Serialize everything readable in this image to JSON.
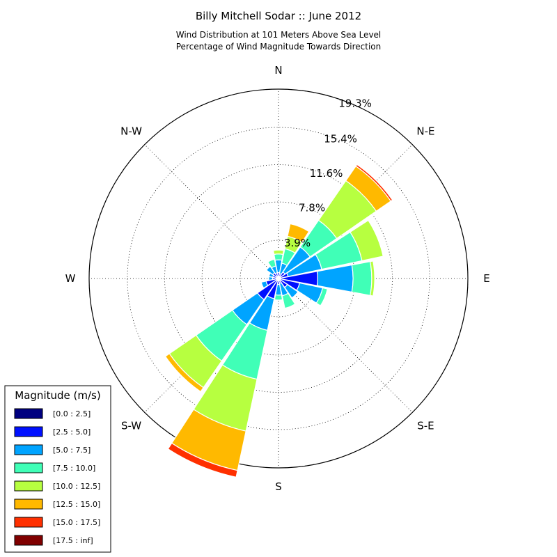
{
  "chart_data": {
    "type": "windrose",
    "title": "Billy Mitchell Sodar :: June 2012",
    "subtitle_line1": "Wind Distribution at 101 Meters Above Sea Level",
    "subtitle_line2": "Percentage of Wind Magnitude Towards Direction",
    "direction_labels": [
      "N",
      "N-E",
      "E",
      "S-E",
      "S",
      "S-W",
      "W",
      "N-W"
    ],
    "ring_labels": [
      "3.9%",
      "7.8%",
      "11.6%",
      "15.4%",
      "19.3%"
    ],
    "rings": [
      3.9,
      7.8,
      11.6,
      15.4,
      19.3
    ],
    "rmax": 19.3,
    "grid": true,
    "legend": {
      "title": "Magnitude (m/s)",
      "placement": "bottom-left",
      "entries": [
        "[0.0 : 2.5]",
        "[2.5 : 5.0]",
        "[5.0 : 7.5]",
        "[7.5 : 10.0]",
        "[10.0 : 12.5]",
        "[12.5 : 15.0]",
        "[15.0 : 17.5]",
        "[17.5 : inf]"
      ]
    },
    "bin_colors": [
      "#000080",
      "#0010ff",
      "#00a4ff",
      "#40ffb7",
      "#b7ff40",
      "#ffb900",
      "#ff3000",
      "#800000"
    ],
    "sector_width_deg": 22.5,
    "sectors": [
      {
        "direction_deg": 0,
        "cumulative": [
          0.2,
          0.6,
          1.9,
          2.5,
          2.9
        ]
      },
      {
        "direction_deg": 22.5,
        "cumulative": [
          0.2,
          0.5,
          1.6,
          3.1,
          4.4,
          5.7
        ]
      },
      {
        "direction_deg": 45,
        "cumulative": [
          0.2,
          0.8,
          3.9,
          7.2,
          12.1,
          13.9,
          14.1
        ]
      },
      {
        "direction_deg": 67.5,
        "cumulative": [
          0.2,
          1.0,
          4.5,
          8.7,
          10.9
        ]
      },
      {
        "direction_deg": 90,
        "cumulative": [
          0.2,
          4.0,
          7.6,
          9.5,
          9.8
        ]
      },
      {
        "direction_deg": 112.5,
        "cumulative": [
          0.2,
          2.2,
          4.6,
          5.1
        ]
      },
      {
        "direction_deg": 135,
        "cumulative": [
          0.2,
          1.1,
          2.4
        ]
      },
      {
        "direction_deg": 157.5,
        "cumulative": [
          0.2,
          0.5,
          1.8,
          3.1
        ]
      },
      {
        "direction_deg": 180,
        "cumulative": [
          0.2,
          0.6,
          1.7,
          2.2
        ]
      },
      {
        "direction_deg": 202.5,
        "cumulative": [
          0.2,
          2.1,
          5.4,
          10.5,
          15.9,
          20.0,
          20.7
        ]
      },
      {
        "direction_deg": 225,
        "cumulative": [
          0.2,
          2.6,
          5.7,
          10.2,
          13.5,
          14.0
        ]
      },
      {
        "direction_deg": 247.5,
        "cumulative": [
          0.2,
          1.3,
          1.8
        ]
      },
      {
        "direction_deg": 270,
        "cumulative": [
          0.2,
          0.6,
          1.0
        ]
      },
      {
        "direction_deg": 292.5,
        "cumulative": [
          0.2,
          0.6,
          1.0
        ]
      },
      {
        "direction_deg": 315,
        "cumulative": [
          0.2,
          0.7,
          1.5
        ]
      },
      {
        "direction_deg": 337.5,
        "cumulative": [
          0.2,
          0.6,
          1.3,
          2.0
        ]
      }
    ]
  }
}
